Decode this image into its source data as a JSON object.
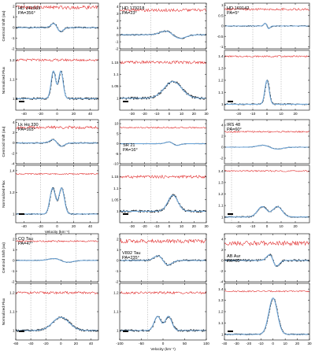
{
  "chart_data": [
    {
      "type": "line",
      "star": "HD 141569",
      "pa": "PA=356°",
      "xlim": [
        -50,
        50
      ],
      "xticks": [
        -40,
        -20,
        0,
        20,
        40
      ],
      "shift_ylim": [
        -2,
        2.3
      ],
      "shift_yticks": [
        -2,
        -1,
        0,
        1,
        2
      ],
      "flux_ylim": [
        0.94,
        1.25
      ],
      "flux_yticks": [
        1.0,
        1.1,
        1.2
      ],
      "xticklabels": true,
      "vlines": [
        -20,
        20
      ],
      "center": 0,
      "width": 10,
      "peak": 1.19,
      "double": true,
      "shift_amp": 0.9,
      "red_offset": 1.9,
      "red_flux": 1.2
    },
    {
      "type": "line",
      "star": "HD 179218",
      "pa": "PA=23°",
      "xlim": [
        -40,
        30
      ],
      "xticks": [
        -30,
        -20,
        -10,
        0,
        10,
        20,
        30
      ],
      "shift_ylim": [
        -2,
        4.5
      ],
      "shift_yticks": [
        -2,
        -1,
        0,
        1,
        2,
        3,
        4
      ],
      "flux_ylim": [
        0.95,
        1.2
      ],
      "flux_yticks": [
        1.0,
        1.05,
        1.1,
        1.15
      ],
      "xticklabels": true,
      "vlines": [
        -15
      ],
      "center": 3,
      "width": 14,
      "peak": 1.07,
      "double": false,
      "shift_amp": 1.2,
      "red_offset": 3.5,
      "red_flux": 1.15
    },
    {
      "type": "line",
      "star": "HD 169142",
      "pa": "PA=5°",
      "xlim": [
        -30,
        30
      ],
      "xticks": [
        -20,
        -10,
        0,
        10,
        20
      ],
      "shift_ylim": [
        -1.1,
        1.1
      ],
      "shift_yticks": [
        -1.0,
        -0.5,
        0.0,
        0.5,
        1.0
      ],
      "flux_ylim": [
        0.95,
        1.45
      ],
      "flux_yticks": [
        1.0,
        1.1,
        1.2,
        1.3,
        1.4
      ],
      "xticklabels": true,
      "vlines": [
        -10,
        10
      ],
      "center": 0,
      "width": 3,
      "peak": 1.2,
      "double": false,
      "shift_amp": 0.3,
      "red_offset": 0.8,
      "red_flux": 1.4
    },
    {
      "type": "line",
      "star": "Lk Hα 330",
      "pa": "PA=165°",
      "xlim": [
        -50,
        50
      ],
      "xticks": [
        -40,
        -20,
        0,
        20,
        40
      ],
      "shift_ylim": [
        -4,
        4.5
      ],
      "shift_yticks": [
        -4,
        -2,
        0,
        2,
        4
      ],
      "flux_ylim": [
        0.92,
        1.45
      ],
      "flux_yticks": [
        1.0,
        1.2,
        1.4
      ],
      "xticklabels": true,
      "xlabel": "Velocity (km⁻¹)",
      "vlines": [
        -20,
        20
      ],
      "center": 0,
      "width": 12,
      "peak": 1.32,
      "double": true,
      "shift_amp": 1.5,
      "red_offset": 3.0,
      "red_flux": 1.37
    },
    {
      "type": "line",
      "star": "SR 21",
      "pa": "PA=16°",
      "xlim": [
        -40,
        30
      ],
      "xticks": [
        -30,
        -20,
        -10,
        0,
        10,
        20,
        30
      ],
      "shift_ylim": [
        -10,
        12
      ],
      "shift_yticks": [
        -10,
        -5,
        0,
        5,
        10
      ],
      "flux_ylim": [
        0.95,
        1.2
      ],
      "flux_yticks": [
        1.0,
        1.05,
        1.1,
        1.15
      ],
      "xticklabels": true,
      "vlines": [
        -15
      ],
      "center": 3,
      "width": 8,
      "peak": 1.07,
      "double": false,
      "shift_amp": 2,
      "red_offset": 8,
      "red_flux": 1.15
    },
    {
      "type": "line",
      "star": "IRS 48",
      "pa": "PA=60°",
      "xlim": [
        -30,
        30
      ],
      "xticks": [
        -20,
        -10,
        0,
        10,
        20
      ],
      "shift_ylim": [
        -3,
        5
      ],
      "shift_yticks": [
        -2,
        0,
        2,
        4
      ],
      "flux_ylim": [
        0.95,
        1.45
      ],
      "flux_yticks": [
        1.0,
        1.1,
        1.2,
        1.3,
        1.4
      ],
      "xticklabels": true,
      "vlines": [
        -25
      ],
      "center": 2,
      "width": 12,
      "peak": 1.12,
      "double": true,
      "shift_amp": 0.8,
      "red_offset": 2.8,
      "red_flux": 1.4
    },
    {
      "type": "line",
      "star": "CQ Tau",
      "pa": "PA=47°",
      "xlim": [
        -60,
        50
      ],
      "xticks": [
        -60,
        -40,
        -20,
        0,
        20,
        40
      ],
      "shift_ylim": [
        -2,
        2.5
      ],
      "shift_yticks": [
        -2,
        -1,
        0,
        1,
        2
      ],
      "flux_ylim": [
        0.95,
        1.25
      ],
      "flux_yticks": [
        1.0,
        1.1,
        1.2
      ],
      "xticklabels": true,
      "vlines": [
        -40,
        -20,
        20
      ],
      "center": 0,
      "width": 22,
      "peak": 1.07,
      "double": false,
      "shift_amp": 0.4,
      "red_offset": 1.8,
      "red_flux": 1.2
    },
    {
      "type": "line",
      "star": "V892 Tau",
      "pa": "PA=235°",
      "xlim": [
        -100,
        100
      ],
      "xticks": [
        -100,
        -50,
        0,
        50,
        100
      ],
      "shift_ylim": [
        -2,
        2.5
      ],
      "shift_yticks": [
        -2,
        -1,
        0,
        1,
        2
      ],
      "flux_ylim": [
        0.95,
        1.25
      ],
      "flux_yticks": [
        1.0,
        1.1,
        1.2
      ],
      "xticklabels": true,
      "xlabel": "Velocity (km⁻¹)",
      "vlines": [
        -35
      ],
      "center": 0,
      "width": 28,
      "peak": 1.1,
      "double": true,
      "shift_amp": 1.0,
      "red_offset": 1.8,
      "red_flux": 1.2
    },
    {
      "type": "line",
      "star": "AB Aur",
      "pa": "PA=60°",
      "xlim": [
        -40,
        30
      ],
      "xticks": [
        -40,
        -30,
        -20,
        -10,
        0,
        10,
        20,
        30
      ],
      "shift_ylim": [
        -4,
        5
      ],
      "shift_yticks": [
        -4,
        -2,
        0,
        2,
        4
      ],
      "flux_ylim": [
        0.95,
        1.45
      ],
      "flux_yticks": [
        1.0,
        1.1,
        1.2,
        1.3,
        1.4
      ],
      "xticklabels": true,
      "vlines": [],
      "center": 0,
      "width": 7,
      "peak": 1.32,
      "double": false,
      "shift_amp": 2.5,
      "red_offset": 3.2,
      "red_flux": 1.38
    }
  ],
  "labels": {
    "shift_axis": "Centroid Shift (au)",
    "flux_axis": "Normalized Flux",
    "velocity_axis": "Velocity (km⁻¹)"
  },
  "colors": {
    "spectroastrometry": "#e02424",
    "data": "#000000",
    "model": "#6fa6d8"
  }
}
